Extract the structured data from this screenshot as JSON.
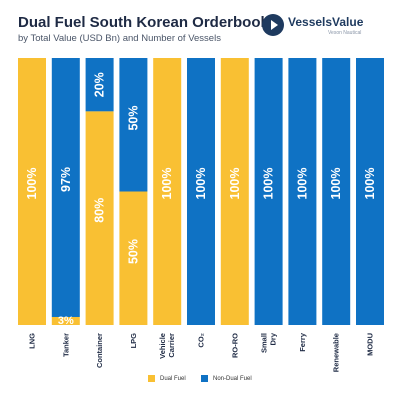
{
  "header": {
    "title": "Dual Fuel South Korean Orderbook",
    "subtitle": "by Total Value (USD Bn) and Number of Vessels"
  },
  "logo": {
    "name": "VesselsValue",
    "tagline": "Veson Nautical"
  },
  "colors": {
    "dual_fuel": "#F9C033",
    "non_dual_fuel": "#0F72C4",
    "title": "#1E2A44"
  },
  "chart_data": {
    "type": "bar",
    "stacked": true,
    "percent": true,
    "categories": [
      "LNG",
      "Tanker",
      "Container",
      "LPG",
      "Vehicle Carrier",
      "CO₂",
      "RO-RO",
      "Small Dry",
      "Ferry",
      "Renewable",
      "MODU"
    ],
    "series": [
      {
        "name": "Dual Fuel",
        "values": [
          100,
          3,
          80,
          50,
          100,
          0,
          100,
          0,
          0,
          0,
          0
        ]
      },
      {
        "name": "Non-Dual Fuel",
        "values": [
          0,
          97,
          20,
          50,
          0,
          100,
          0,
          100,
          100,
          100,
          100
        ]
      }
    ],
    "ylim": [
      0,
      100
    ],
    "legend": "bottom-center",
    "grid": false
  }
}
